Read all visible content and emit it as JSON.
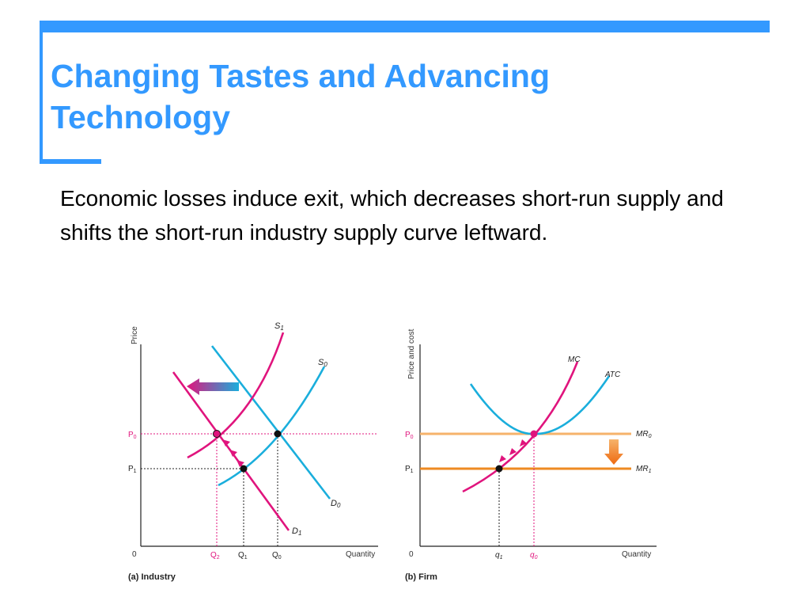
{
  "slide": {
    "title_line1": "Changing Tastes and Advancing",
    "title_line2": "Technology",
    "body": "Economic losses induce exit, which decreases short-run supply and shifts the short-run industry supply curve leftward."
  },
  "colors": {
    "accent": "#3399ff",
    "supply_cyan": "#1aaedc",
    "demand_magenta": "#e0147d",
    "mr_orange_light": "#f6b36b",
    "mr_orange_dark": "#ee8a22"
  },
  "panels": {
    "industry": {
      "caption": "(a) Industry",
      "y_axis_label": "Price",
      "x_axis_label": "Quantity",
      "origin": "0",
      "curves": {
        "s1": "S",
        "s1_sub": "1",
        "s0": "S",
        "s0_sub": "0",
        "d0": "D",
        "d0_sub": "0",
        "d1": "D",
        "d1_sub": "1"
      },
      "price_ticks": {
        "p0": "P",
        "p0_sub": "0",
        "p1": "P",
        "p1_sub": "1"
      },
      "qty_ticks": {
        "q2": "Q",
        "q2_sub": "2",
        "q1": "Q",
        "q1_sub": "1",
        "q0": "Q",
        "q0_sub": "0"
      }
    },
    "firm": {
      "caption": "(b) Firm",
      "y_axis_label": "Price and cost",
      "x_axis_label": "Quantity",
      "origin": "0",
      "curves": {
        "mc": "MC",
        "atc": "ATC",
        "mr0": "MR",
        "mr0_sub": "0",
        "mr1": "MR",
        "mr1_sub": "1"
      },
      "price_ticks": {
        "p0": "P",
        "p0_sub": "0",
        "p1": "P",
        "p1_sub": "1"
      },
      "qty_ticks": {
        "q1": "q",
        "q1_sub": "1",
        "q0": "q",
        "q0_sub": "0"
      }
    }
  }
}
